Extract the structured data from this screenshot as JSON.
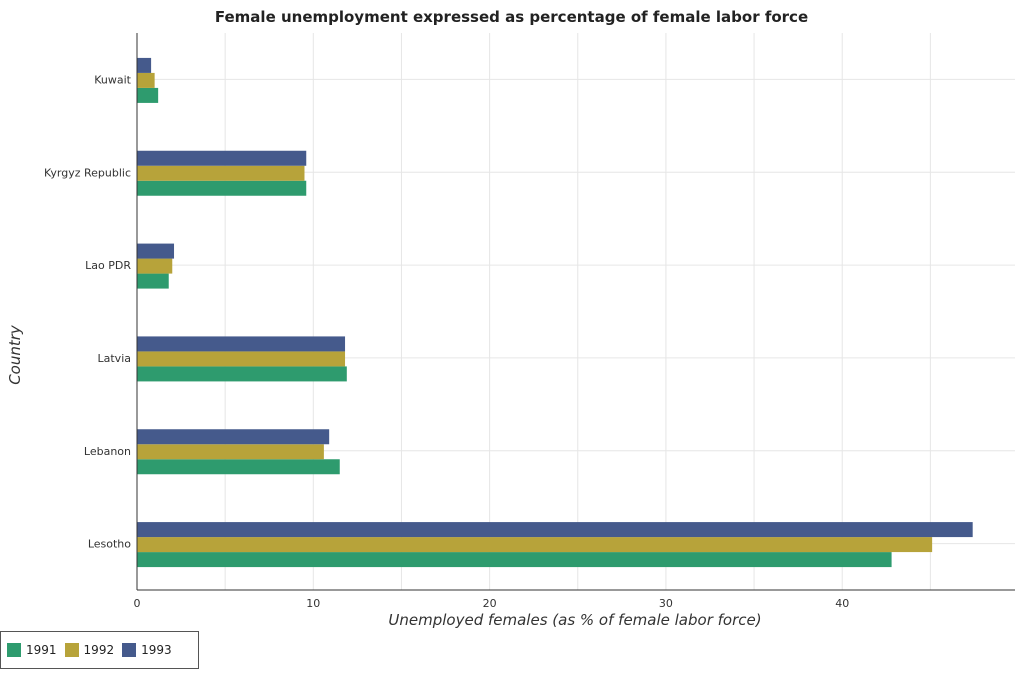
{
  "chart_data": {
    "type": "bar",
    "orientation": "horizontal",
    "title": "Female unemployment expressed as percentage of female labor force",
    "xlabel": "Unemployed females (as % of female labor force)",
    "ylabel": "Country",
    "categories": [
      "Kuwait",
      "Kyrgyz Republic",
      "Lao PDR",
      "Latvia",
      "Lebanon",
      "Lesotho"
    ],
    "series": [
      {
        "name": "1991",
        "color": "#2e9b6e",
        "values": [
          1.2,
          9.6,
          1.8,
          11.9,
          11.5,
          42.8
        ]
      },
      {
        "name": "1992",
        "color": "#b7a33a",
        "values": [
          1.0,
          9.5,
          2.0,
          11.8,
          10.6,
          45.1
        ]
      },
      {
        "name": "1993",
        "color": "#455a8c",
        "values": [
          0.8,
          9.6,
          2.1,
          11.8,
          10.9,
          47.4
        ]
      }
    ],
    "xlim": [
      0,
      49.8
    ],
    "xticks": [
      0,
      10,
      20,
      30,
      40
    ],
    "grid": true,
    "legend_position": "bottom-left"
  }
}
